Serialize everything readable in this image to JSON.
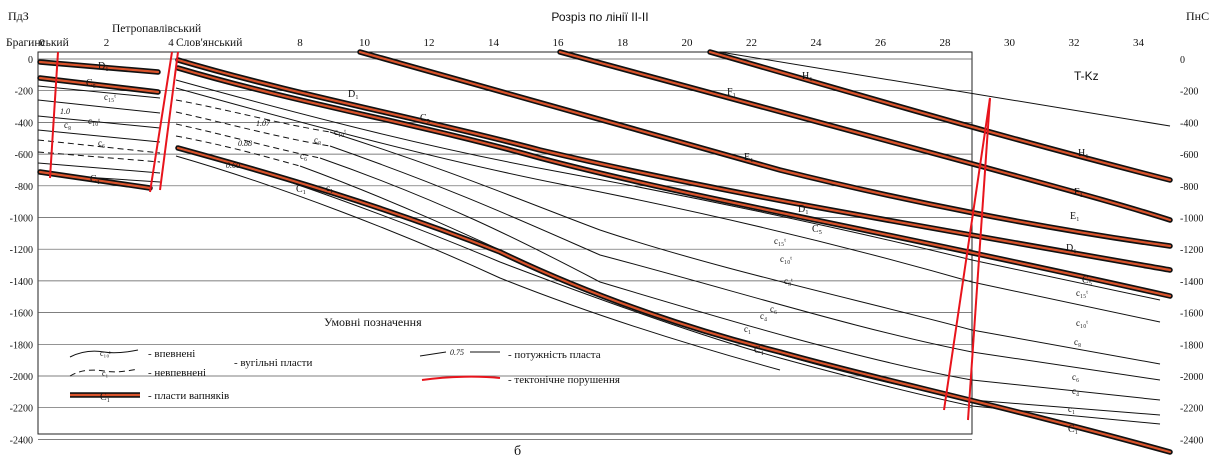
{
  "title": "Розріз по лінії ІІ-ІІ",
  "corner_left": "ПдЗ",
  "corner_right": "ПнС",
  "zone_label": "T-Kz",
  "footer_letter": "б",
  "fault_blocks": [
    "Брагинський",
    "Петропавлівський",
    "Слов'янський"
  ],
  "x_ticks": [
    "0",
    "2",
    "4",
    "6",
    "8",
    "10",
    "12",
    "14",
    "16",
    "18",
    "20",
    "22",
    "24",
    "26",
    "28",
    "30",
    "32",
    "34"
  ],
  "y_ticks": [
    "0",
    "-200",
    "-400",
    "-600",
    "-800",
    "-1000",
    "-1200",
    "-1400",
    "-1600",
    "-1800",
    "-2000",
    "-2200",
    "-2400"
  ],
  "y_ticks_right": [
    "0",
    "-200",
    "-400",
    "-600",
    "-800",
    "-1000",
    "-1200",
    "-1400",
    "-1600",
    "-1800",
    "-2000",
    "-2200",
    "-2400"
  ],
  "bed_labels": {
    "D1_a": "D₁",
    "C5_a": "C₅",
    "c15_a": "c₁₅ᵗ",
    "v10": "1.0",
    "c8_a": "c₈",
    "c10_a": "c₁₀ᵗ",
    "c6_a": "c₆",
    "C1_a": "C₁",
    "D1_b": "D₁",
    "C5_b": "C₅",
    "th107": "1.07",
    "c10_b": "c₁₀ᵗ",
    "c8_b": "c₈",
    "th088": "0.88",
    "c6_b": "c₆",
    "th060": "0.60",
    "c1_b": "c₁",
    "C1_b": "C₁",
    "F1_a": "F₁",
    "E1_a": "E₁",
    "H1_a": "H₁",
    "H1_b": "H₁",
    "F1_b": "F₁",
    "E1_b": "E₁",
    "D1_c": "D₁",
    "C5_c": "C₅",
    "c15_c": "c₁₅ᵗ",
    "c10_c": "c₁₀ᵗ",
    "c8_c": "c₈",
    "C5_d": "C₅",
    "c6_c": "c₆",
    "c4_c": "c₄",
    "c1_c": "c₁",
    "C1_c": "C₁",
    "D1_d": "D₁",
    "C5_e": "C₅",
    "c15_e": "c₁₅ᵗ",
    "c10_e": "c₁₀ᵗ",
    "c8_e": "c₈ᵗ",
    "c6_e": "c₆",
    "c4_e": "c₄",
    "c1_e": "c₁",
    "C1_e": "C₁"
  },
  "legend": {
    "title": "Умовні позначення",
    "confident": "- впевнені",
    "uncertain": "- невпевнені",
    "coal_group": "- вугільні пласти",
    "limestone": "- пласти вапняків",
    "thickness": "- потужність пласта",
    "faults": "- тектонічне порушення",
    "sym_coal": "c₁₀ᵗ",
    "sym_unc": "c₁",
    "sym_lime": "C₁",
    "sym_thick": "0.75"
  },
  "colors": {
    "limestone_core": "#d9532b",
    "fault": "#e8141c",
    "line": "#111111",
    "grid": "#333333"
  }
}
